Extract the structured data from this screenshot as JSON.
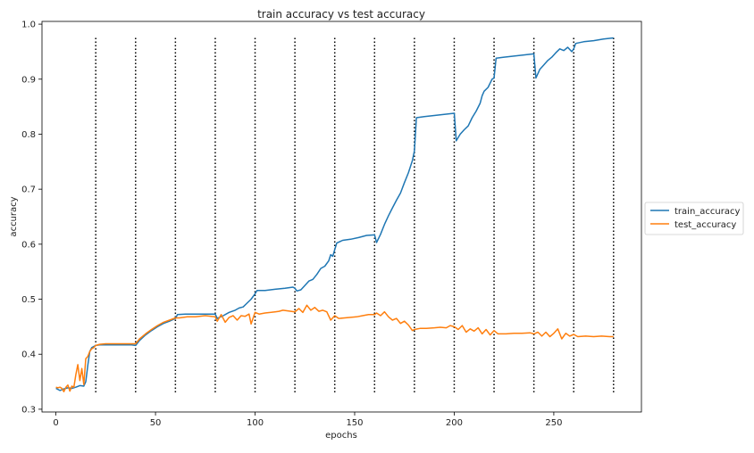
{
  "chart_data": {
    "type": "line",
    "title": "train accuracy vs test accuracy",
    "xlabel": "epochs",
    "ylabel": "accuracy",
    "xlim": [
      -7,
      294
    ],
    "ylim": [
      0.295,
      1.005
    ],
    "xticks": [
      0,
      50,
      100,
      150,
      200,
      250
    ],
    "yticks": [
      0.3,
      0.4,
      0.5,
      0.6,
      0.7,
      0.8,
      0.9,
      1.0
    ],
    "ytick_labels": [
      "0.3",
      "0.4",
      "0.5",
      "0.6",
      "0.7",
      "0.8",
      "0.9",
      "1.0"
    ],
    "grid": false,
    "legend_position": "outside-right",
    "vlines": {
      "x": [
        20,
        40,
        60,
        80,
        100,
        120,
        140,
        160,
        180,
        200,
        220,
        240,
        260,
        280
      ],
      "ymin": 0.33,
      "ymax": 0.975,
      "style": "dotted",
      "color": "#000000"
    },
    "series": [
      {
        "name": "train_accuracy",
        "color": "#1f77b4",
        "points": [
          [
            0,
            0.338
          ],
          [
            2,
            0.334
          ],
          [
            4,
            0.337
          ],
          [
            6,
            0.339
          ],
          [
            8,
            0.338
          ],
          [
            10,
            0.34
          ],
          [
            12,
            0.343
          ],
          [
            14,
            0.342
          ],
          [
            15,
            0.35
          ],
          [
            16,
            0.38
          ],
          [
            17,
            0.405
          ],
          [
            18,
            0.412
          ],
          [
            19,
            0.414
          ],
          [
            20,
            0.416
          ],
          [
            22,
            0.417
          ],
          [
            25,
            0.417
          ],
          [
            30,
            0.417
          ],
          [
            35,
            0.417
          ],
          [
            38,
            0.417
          ],
          [
            40,
            0.416
          ],
          [
            42,
            0.425
          ],
          [
            45,
            0.435
          ],
          [
            48,
            0.443
          ],
          [
            51,
            0.45
          ],
          [
            54,
            0.456
          ],
          [
            57,
            0.46
          ],
          [
            60,
            0.465
          ],
          [
            61,
            0.472
          ],
          [
            65,
            0.473
          ],
          [
            70,
            0.473
          ],
          [
            75,
            0.473
          ],
          [
            80,
            0.473
          ],
          [
            81,
            0.465
          ],
          [
            84,
            0.47
          ],
          [
            87,
            0.476
          ],
          [
            90,
            0.48
          ],
          [
            92,
            0.484
          ],
          [
            94,
            0.486
          ],
          [
            96,
            0.493
          ],
          [
            98,
            0.5
          ],
          [
            100,
            0.51
          ],
          [
            101,
            0.516
          ],
          [
            105,
            0.516
          ],
          [
            110,
            0.518
          ],
          [
            115,
            0.52
          ],
          [
            119,
            0.522
          ],
          [
            120,
            0.52
          ],
          [
            121,
            0.515
          ],
          [
            123,
            0.517
          ],
          [
            125,
            0.525
          ],
          [
            127,
            0.533
          ],
          [
            129,
            0.536
          ],
          [
            131,
            0.545
          ],
          [
            133,
            0.556
          ],
          [
            135,
            0.56
          ],
          [
            137,
            0.57
          ],
          [
            138,
            0.581
          ],
          [
            139,
            0.578
          ],
          [
            140,
            0.59
          ],
          [
            141,
            0.602
          ],
          [
            144,
            0.607
          ],
          [
            148,
            0.609
          ],
          [
            152,
            0.612
          ],
          [
            156,
            0.616
          ],
          [
            160,
            0.617
          ],
          [
            161,
            0.603
          ],
          [
            163,
            0.618
          ],
          [
            165,
            0.636
          ],
          [
            167,
            0.652
          ],
          [
            169,
            0.666
          ],
          [
            171,
            0.68
          ],
          [
            173,
            0.693
          ],
          [
            175,
            0.712
          ],
          [
            177,
            0.73
          ],
          [
            179,
            0.752
          ],
          [
            180,
            0.77
          ],
          [
            181,
            0.83
          ],
          [
            185,
            0.832
          ],
          [
            190,
            0.834
          ],
          [
            195,
            0.836
          ],
          [
            200,
            0.838
          ],
          [
            201,
            0.788
          ],
          [
            203,
            0.8
          ],
          [
            205,
            0.808
          ],
          [
            207,
            0.815
          ],
          [
            209,
            0.83
          ],
          [
            211,
            0.842
          ],
          [
            213,
            0.856
          ],
          [
            214,
            0.87
          ],
          [
            215,
            0.878
          ],
          [
            217,
            0.885
          ],
          [
            219,
            0.9
          ],
          [
            220,
            0.902
          ],
          [
            221,
            0.938
          ],
          [
            225,
            0.94
          ],
          [
            230,
            0.942
          ],
          [
            235,
            0.944
          ],
          [
            240,
            0.946
          ],
          [
            241,
            0.902
          ],
          [
            243,
            0.918
          ],
          [
            245,
            0.926
          ],
          [
            247,
            0.934
          ],
          [
            249,
            0.94
          ],
          [
            251,
            0.948
          ],
          [
            253,
            0.955
          ],
          [
            255,
            0.952
          ],
          [
            257,
            0.958
          ],
          [
            259,
            0.95
          ],
          [
            260,
            0.955
          ],
          [
            261,
            0.965
          ],
          [
            265,
            0.968
          ],
          [
            270,
            0.97
          ],
          [
            275,
            0.973
          ],
          [
            280,
            0.975
          ]
        ]
      },
      {
        "name": "test_accuracy",
        "color": "#ff7f0e",
        "points": [
          [
            0,
            0.34
          ],
          [
            1,
            0.339
          ],
          [
            2,
            0.34
          ],
          [
            3,
            0.338
          ],
          [
            4,
            0.332
          ],
          [
            5,
            0.34
          ],
          [
            6,
            0.344
          ],
          [
            7,
            0.333
          ],
          [
            8,
            0.342
          ],
          [
            9,
            0.34
          ],
          [
            10,
            0.363
          ],
          [
            11,
            0.381
          ],
          [
            12,
            0.352
          ],
          [
            13,
            0.374
          ],
          [
            14,
            0.345
          ],
          [
            15,
            0.392
          ],
          [
            16,
            0.396
          ],
          [
            17,
            0.405
          ],
          [
            18,
            0.41
          ],
          [
            19,
            0.412
          ],
          [
            20,
            0.416
          ],
          [
            22,
            0.418
          ],
          [
            25,
            0.419
          ],
          [
            30,
            0.419
          ],
          [
            35,
            0.419
          ],
          [
            40,
            0.419
          ],
          [
            42,
            0.428
          ],
          [
            45,
            0.437
          ],
          [
            48,
            0.445
          ],
          [
            51,
            0.452
          ],
          [
            54,
            0.458
          ],
          [
            57,
            0.462
          ],
          [
            60,
            0.466
          ],
          [
            62,
            0.466
          ],
          [
            66,
            0.468
          ],
          [
            70,
            0.468
          ],
          [
            75,
            0.47
          ],
          [
            80,
            0.468
          ],
          [
            81,
            0.46
          ],
          [
            83,
            0.472
          ],
          [
            85,
            0.458
          ],
          [
            87,
            0.467
          ],
          [
            89,
            0.47
          ],
          [
            91,
            0.462
          ],
          [
            93,
            0.47
          ],
          [
            95,
            0.469
          ],
          [
            97,
            0.473
          ],
          [
            98,
            0.455
          ],
          [
            100,
            0.476
          ],
          [
            102,
            0.473
          ],
          [
            105,
            0.475
          ],
          [
            108,
            0.476
          ],
          [
            110,
            0.477
          ],
          [
            112,
            0.478
          ],
          [
            114,
            0.48
          ],
          [
            116,
            0.479
          ],
          [
            118,
            0.478
          ],
          [
            120,
            0.477
          ],
          [
            122,
            0.483
          ],
          [
            124,
            0.476
          ],
          [
            126,
            0.489
          ],
          [
            128,
            0.48
          ],
          [
            130,
            0.485
          ],
          [
            132,
            0.478
          ],
          [
            134,
            0.48
          ],
          [
            136,
            0.477
          ],
          [
            138,
            0.462
          ],
          [
            140,
            0.47
          ],
          [
            142,
            0.465
          ],
          [
            145,
            0.466
          ],
          [
            148,
            0.467
          ],
          [
            151,
            0.468
          ],
          [
            154,
            0.47
          ],
          [
            157,
            0.472
          ],
          [
            160,
            0.472
          ],
          [
            161,
            0.475
          ],
          [
            163,
            0.47
          ],
          [
            165,
            0.477
          ],
          [
            167,
            0.468
          ],
          [
            169,
            0.462
          ],
          [
            171,
            0.465
          ],
          [
            173,
            0.456
          ],
          [
            175,
            0.46
          ],
          [
            177,
            0.453
          ],
          [
            179,
            0.443
          ],
          [
            180,
            0.445
          ],
          [
            183,
            0.447
          ],
          [
            186,
            0.447
          ],
          [
            190,
            0.448
          ],
          [
            193,
            0.449
          ],
          [
            196,
            0.448
          ],
          [
            198,
            0.452
          ],
          [
            200,
            0.45
          ],
          [
            202,
            0.445
          ],
          [
            204,
            0.452
          ],
          [
            206,
            0.44
          ],
          [
            208,
            0.446
          ],
          [
            210,
            0.442
          ],
          [
            212,
            0.448
          ],
          [
            214,
            0.437
          ],
          [
            216,
            0.445
          ],
          [
            218,
            0.435
          ],
          [
            220,
            0.443
          ],
          [
            222,
            0.437
          ],
          [
            226,
            0.437
          ],
          [
            230,
            0.438
          ],
          [
            234,
            0.438
          ],
          [
            238,
            0.439
          ],
          [
            240,
            0.437
          ],
          [
            242,
            0.44
          ],
          [
            244,
            0.433
          ],
          [
            246,
            0.44
          ],
          [
            248,
            0.432
          ],
          [
            250,
            0.438
          ],
          [
            252,
            0.446
          ],
          [
            254,
            0.428
          ],
          [
            256,
            0.438
          ],
          [
            258,
            0.433
          ],
          [
            260,
            0.436
          ],
          [
            262,
            0.432
          ],
          [
            266,
            0.433
          ],
          [
            270,
            0.432
          ],
          [
            274,
            0.433
          ],
          [
            278,
            0.432
          ],
          [
            280,
            0.432
          ]
        ]
      }
    ]
  }
}
